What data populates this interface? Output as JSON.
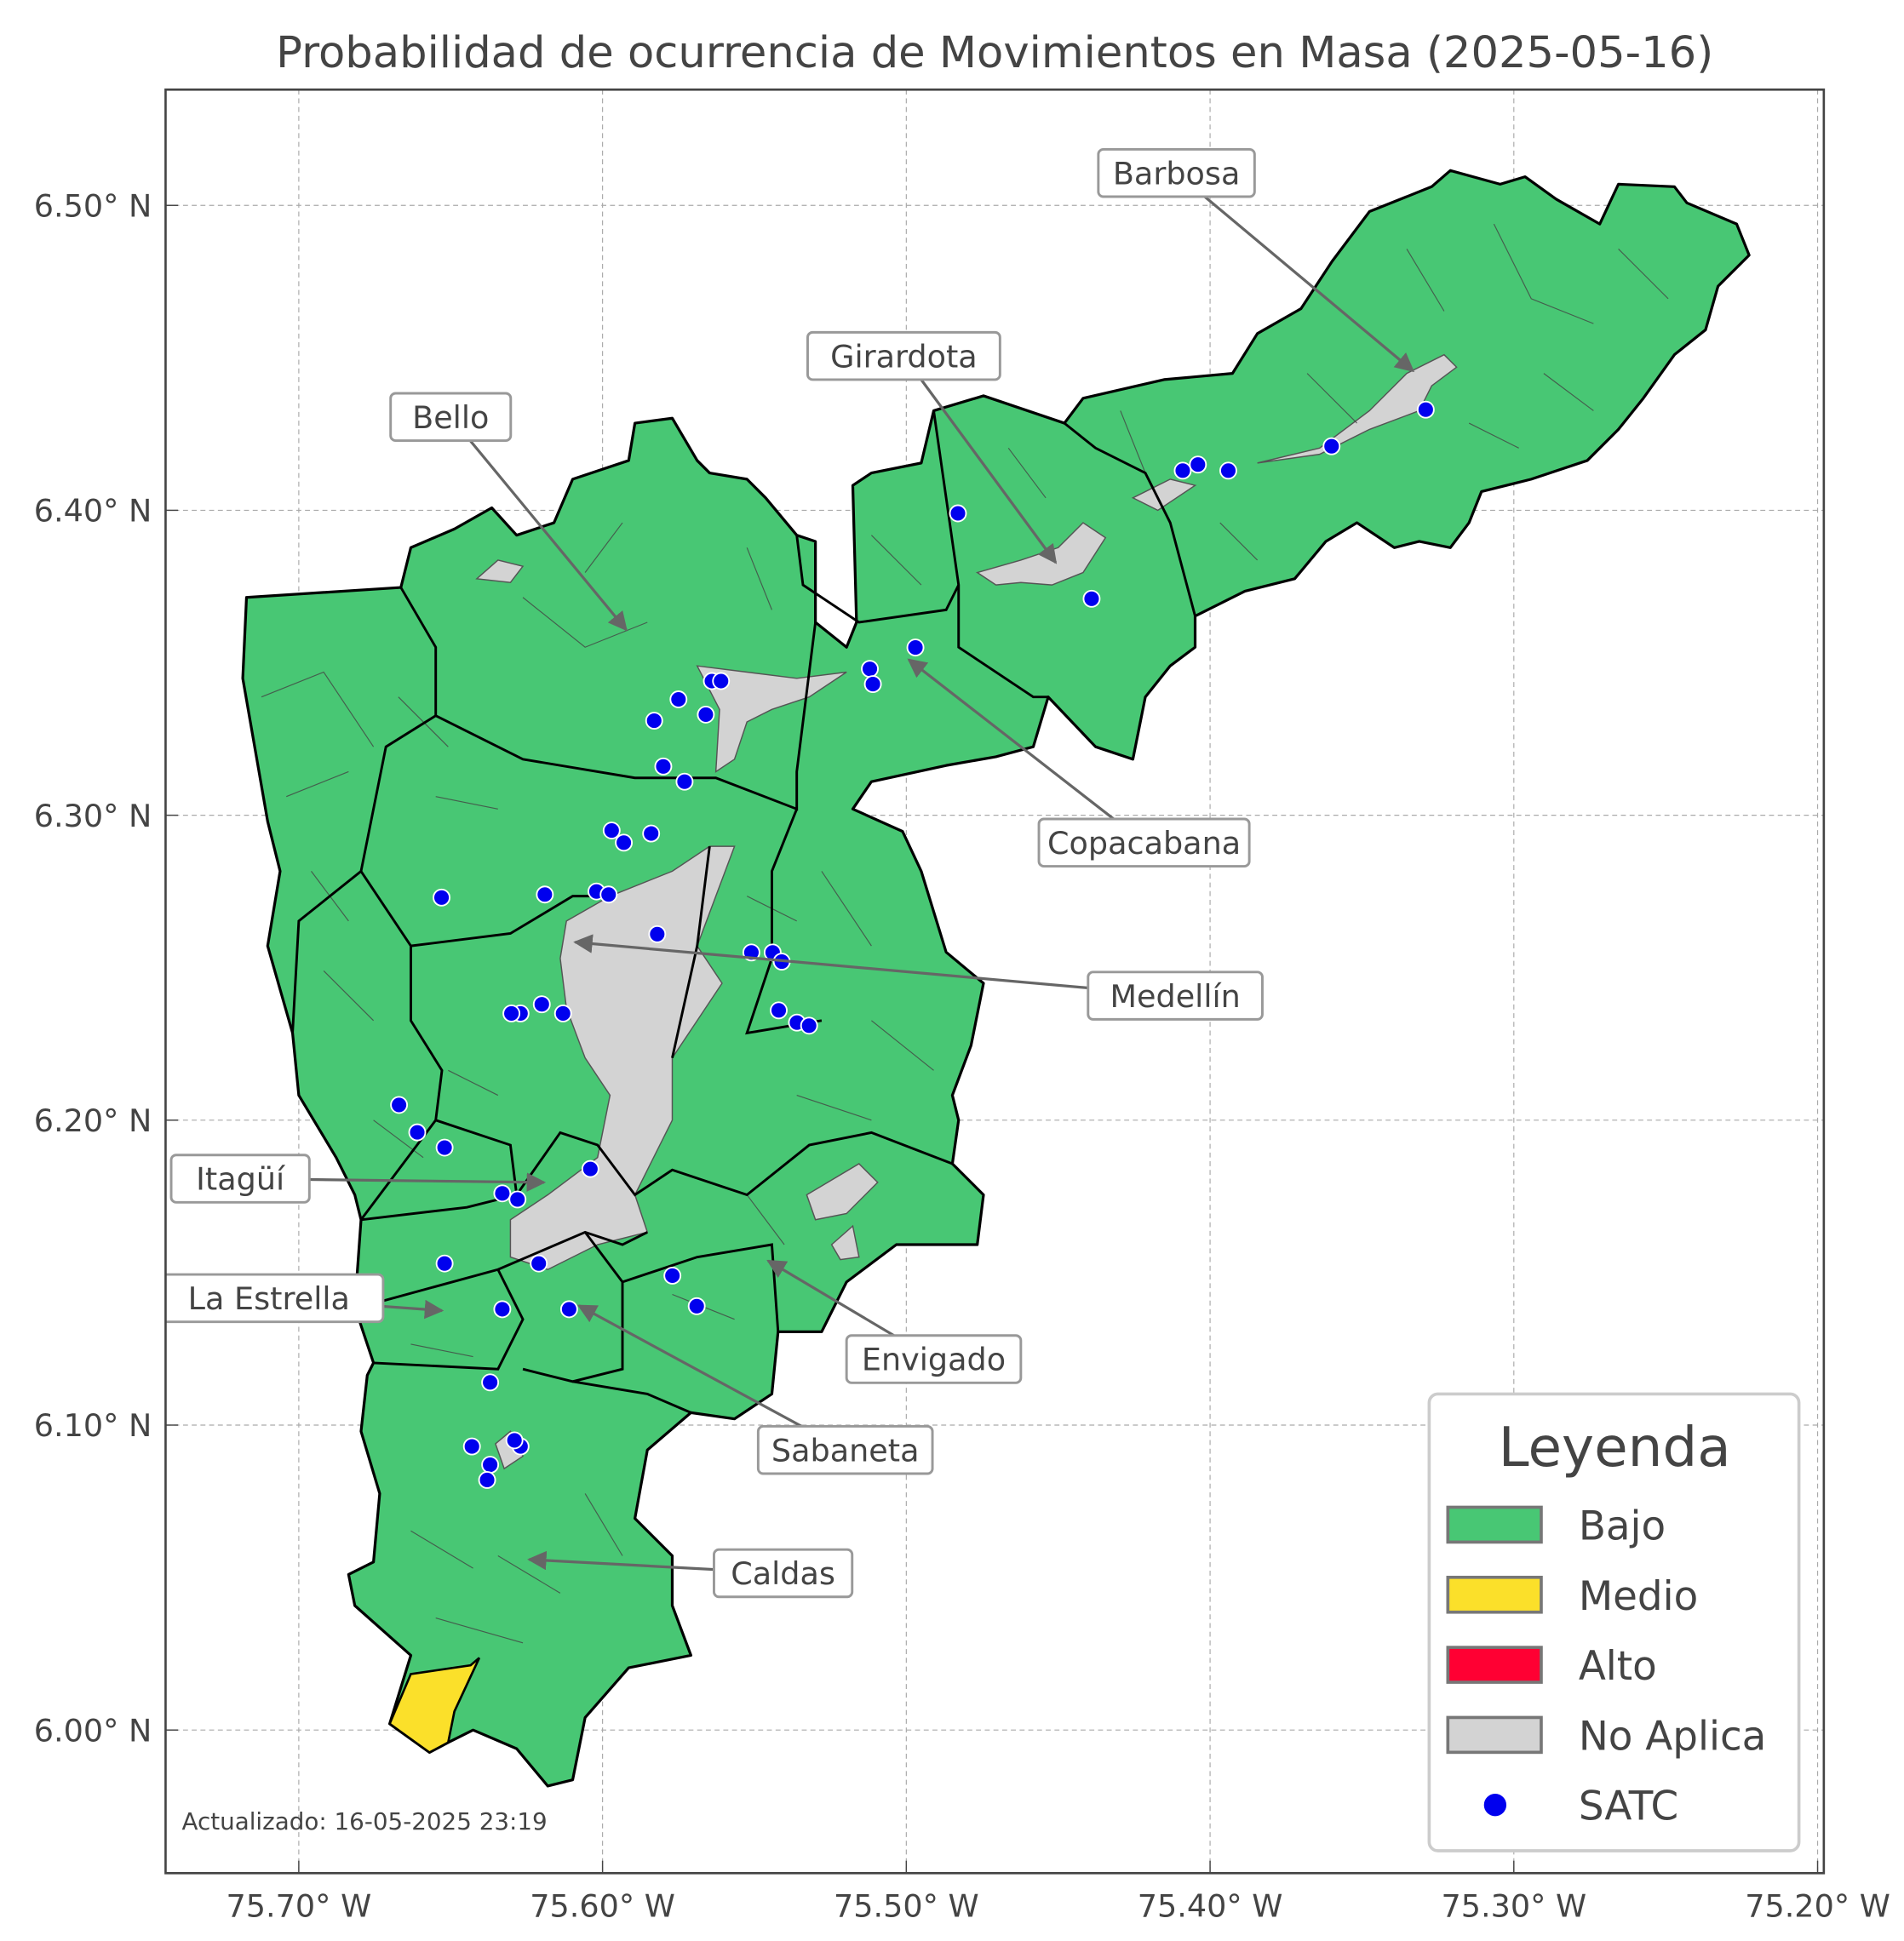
{
  "title": "Probabilidad de ocurrencia de Movimientos en Masa (2025-05-16)",
  "footer": "Actualizado: 16-05-2025 23:19",
  "axes": {
    "x_ticks": [
      "75.70° W",
      "75.60° W",
      "75.50° W",
      "75.40° W",
      "75.30° W",
      "75.20° W"
    ],
    "x_values": [
      -75.7,
      -75.6,
      -75.5,
      -75.4,
      -75.3,
      -75.2
    ],
    "y_ticks": [
      "6.50° N",
      "6.40° N",
      "6.30° N",
      "6.20° N",
      "6.10° N",
      "6.00° N"
    ],
    "y_values": [
      6.5,
      6.4,
      6.3,
      6.2,
      6.1,
      6.0
    ],
    "grid": true
  },
  "legend": {
    "title": "Leyenda",
    "placement": "bottom-right",
    "items": [
      {
        "label": "Bajo",
        "color": "#48c774",
        "kind": "patch"
      },
      {
        "label": "Medio",
        "color": "#fbe02a",
        "kind": "patch"
      },
      {
        "label": "Alto",
        "color": "#ff0033",
        "kind": "patch"
      },
      {
        "label": "No Aplica",
        "color": "#d3d3d3",
        "kind": "patch"
      },
      {
        "label": "SATC",
        "color": "#0000ee",
        "kind": "point"
      }
    ]
  },
  "municipalities": [
    "Barbosa",
    "Girardota",
    "Bello",
    "Copacabana",
    "Medellín",
    "Itagüí",
    "La Estrella",
    "Envigado",
    "Sabaneta",
    "Caldas"
  ],
  "satc_stations": [
    [
      -75.483,
      6.399
    ],
    [
      -75.409,
      6.413
    ],
    [
      -75.404,
      6.415
    ],
    [
      -75.394,
      6.413
    ],
    [
      -75.36,
      6.421
    ],
    [
      -75.329,
      6.433
    ],
    [
      -75.439,
      6.371
    ],
    [
      -75.497,
      6.355
    ],
    [
      -75.512,
      6.348
    ],
    [
      -75.511,
      6.343
    ],
    [
      -75.583,
      6.331
    ],
    [
      -75.575,
      6.338
    ],
    [
      -75.566,
      6.333
    ],
    [
      -75.564,
      6.344
    ],
    [
      -75.561,
      6.344
    ],
    [
      -75.58,
      6.316
    ],
    [
      -75.573,
      6.311
    ],
    [
      -75.597,
      6.295
    ],
    [
      -75.593,
      6.291
    ],
    [
      -75.584,
      6.294
    ],
    [
      -75.653,
      6.273
    ],
    [
      -75.619,
      6.274
    ],
    [
      -75.602,
      6.275
    ],
    [
      -75.598,
      6.274
    ],
    [
      -75.582,
      6.261
    ],
    [
      -75.551,
      6.255
    ],
    [
      -75.544,
      6.255
    ],
    [
      -75.541,
      6.252
    ],
    [
      -75.542,
      6.236
    ],
    [
      -75.536,
      6.232
    ],
    [
      -75.532,
      6.231
    ],
    [
      -75.62,
      6.238
    ],
    [
      -75.627,
      6.235
    ],
    [
      -75.63,
      6.235
    ],
    [
      -75.613,
      6.235
    ],
    [
      -75.667,
      6.205
    ],
    [
      -75.661,
      6.196
    ],
    [
      -75.652,
      6.191
    ],
    [
      -75.604,
      6.184
    ],
    [
      -75.633,
      6.176
    ],
    [
      -75.628,
      6.174
    ],
    [
      -75.652,
      6.153
    ],
    [
      -75.621,
      6.153
    ],
    [
      -75.577,
      6.149
    ],
    [
      -75.569,
      6.139
    ],
    [
      -75.633,
      6.138
    ],
    [
      -75.611,
      6.138
    ],
    [
      -75.637,
      6.114
    ],
    [
      -75.643,
      6.093
    ],
    [
      -75.627,
      6.093
    ],
    [
      -75.629,
      6.095
    ],
    [
      -75.637,
      6.087
    ],
    [
      -75.638,
      6.082
    ]
  ]
}
